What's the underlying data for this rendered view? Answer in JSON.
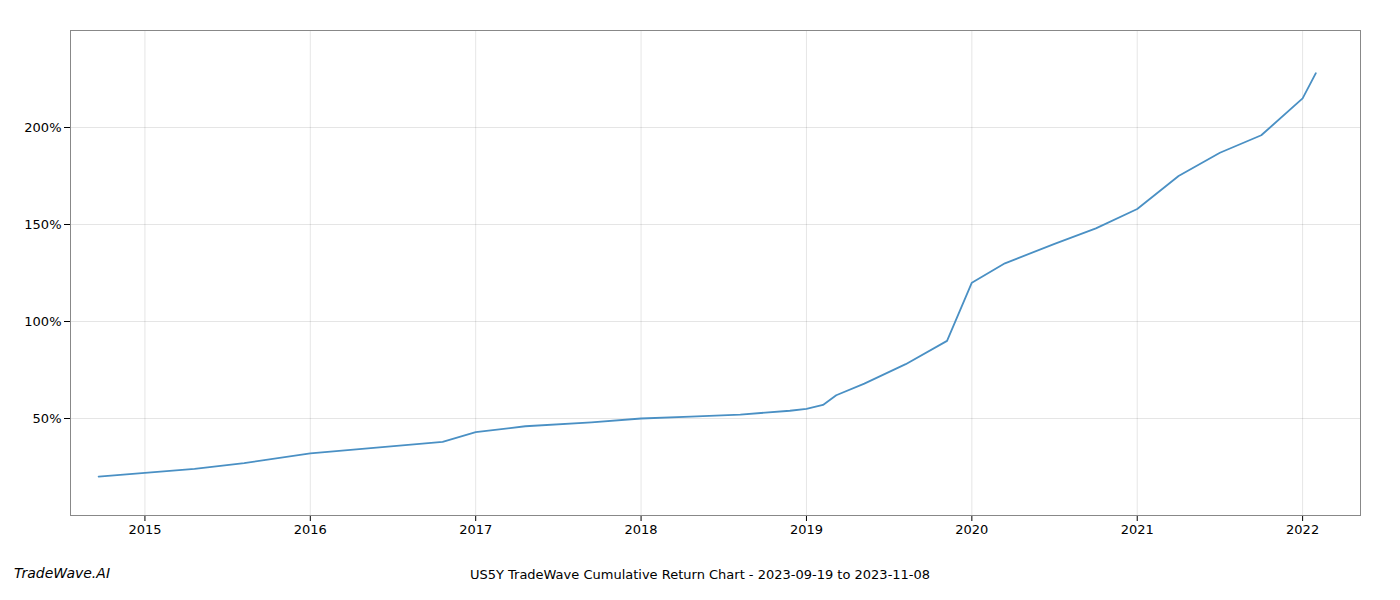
{
  "chart_data": {
    "type": "line",
    "title": "US5Y TradeWave Cumulative Return Chart - 2023-09-19 to 2023-11-08",
    "annotations": [
      "TradeWave.AI"
    ],
    "x": [
      2014.72,
      2015.0,
      2015.3,
      2015.6,
      2016.0,
      2016.4,
      2016.8,
      2017.0,
      2017.3,
      2017.7,
      2018.0,
      2018.3,
      2018.6,
      2018.9,
      2019.0,
      2019.1,
      2019.18,
      2019.35,
      2019.6,
      2019.85,
      2020.0,
      2020.2,
      2020.5,
      2020.75,
      2021.0,
      2021.25,
      2021.5,
      2021.75,
      2022.0,
      2022.08
    ],
    "values": [
      20,
      22,
      24,
      27,
      32,
      35,
      38,
      43,
      46,
      48,
      50,
      51,
      52,
      54,
      55,
      57,
      62,
      68,
      78,
      90,
      120,
      130,
      140,
      148,
      158,
      175,
      187,
      196,
      215,
      228
    ],
    "color": "#4a90c4",
    "xlim": [
      2014.55,
      2022.35
    ],
    "xticks": [
      2015,
      2016,
      2017,
      2018,
      2019,
      2020,
      2021,
      2022
    ],
    "ylim": [
      0,
      250
    ],
    "yticks": [
      {
        "value": 50,
        "label": "50%"
      },
      {
        "value": 100,
        "label": "100%"
      },
      {
        "value": 150,
        "label": "150%"
      },
      {
        "value": 200,
        "label": "200%"
      }
    ],
    "grid": true
  }
}
